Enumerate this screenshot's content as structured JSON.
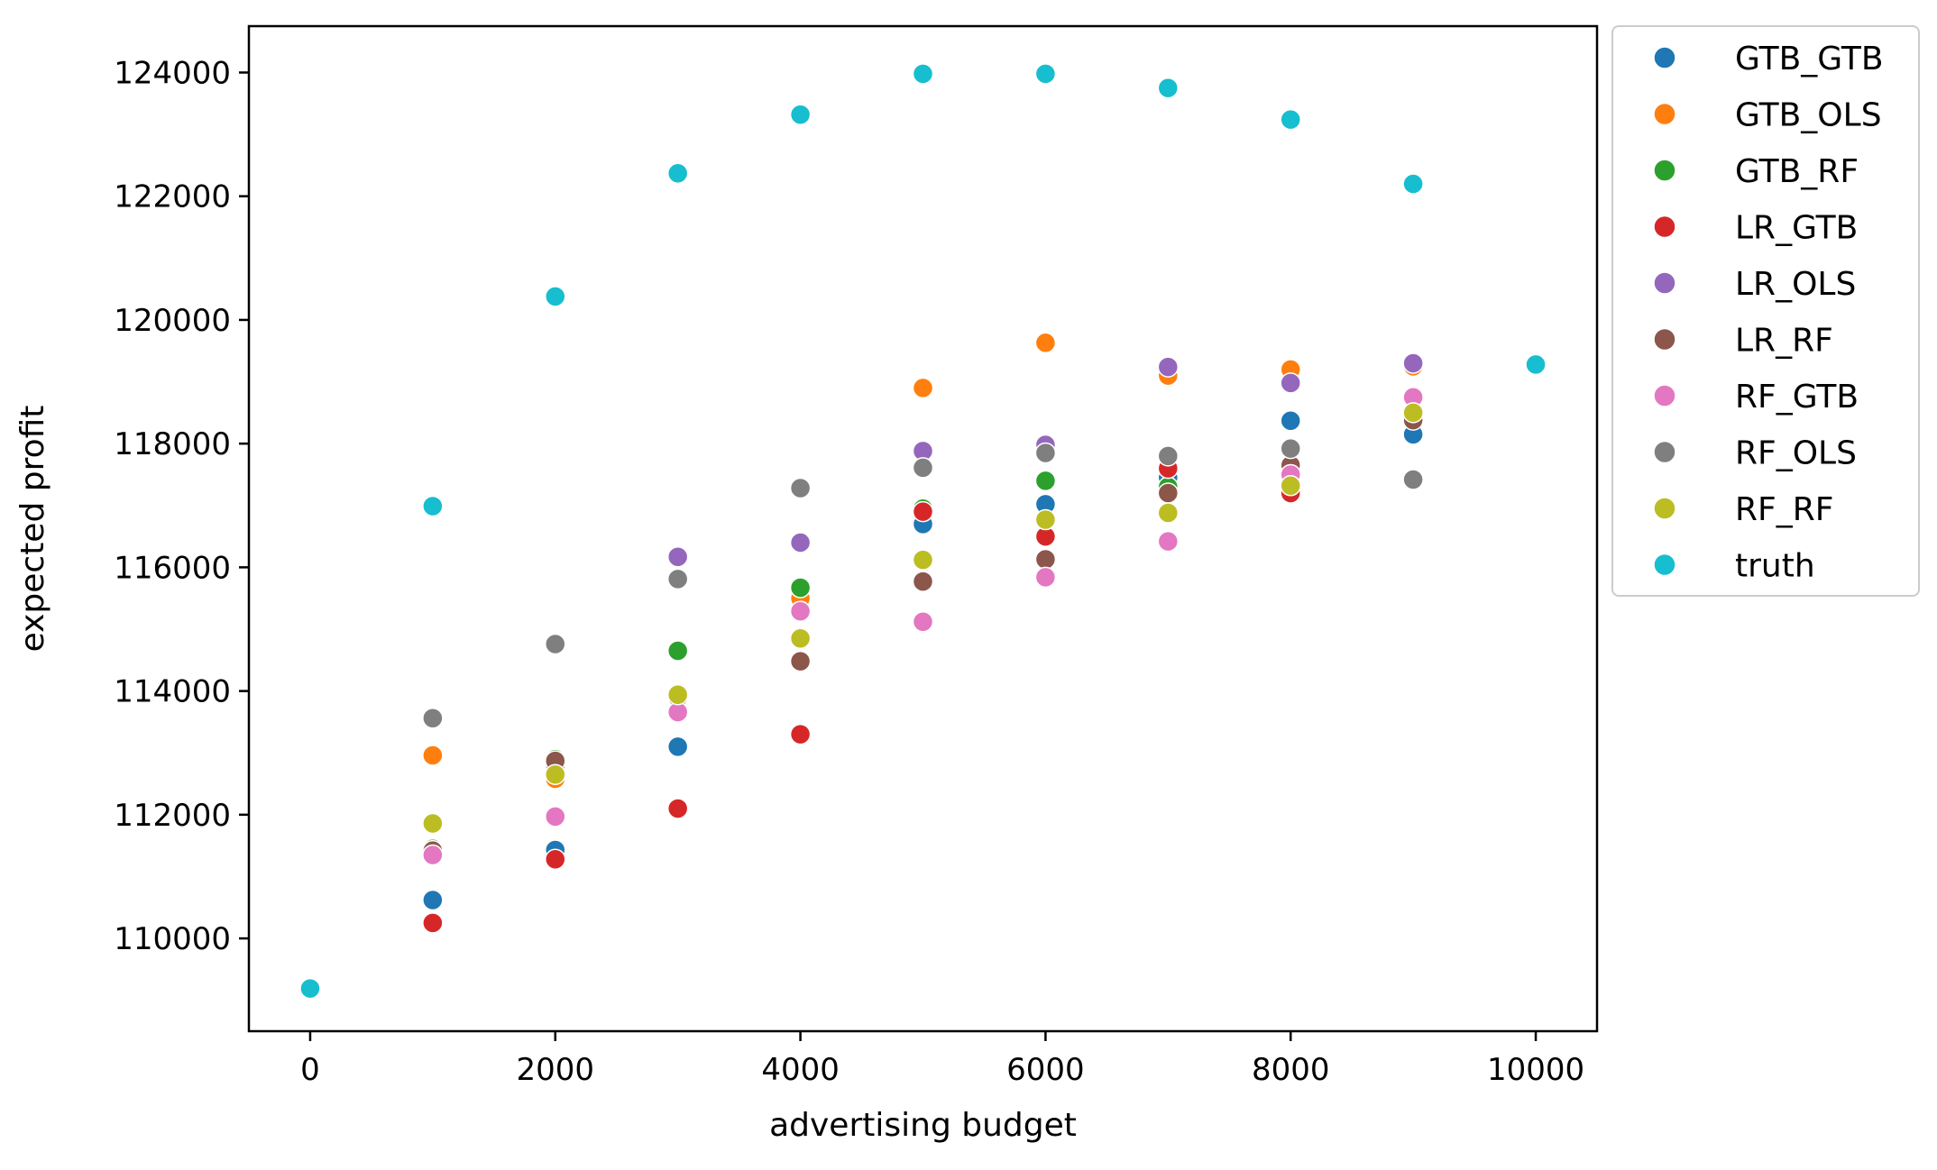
{
  "chart_data": {
    "type": "scatter",
    "title": "",
    "xlabel": "advertising budget",
    "ylabel": "expected profit",
    "xlim": [
      -500,
      10500
    ],
    "ylim": [
      108500,
      124750
    ],
    "xticks": [
      0,
      2000,
      4000,
      6000,
      8000,
      10000
    ],
    "yticks": [
      110000,
      112000,
      114000,
      116000,
      118000,
      120000,
      122000,
      124000
    ],
    "grid": false,
    "legend_position": "outside-right-top",
    "series": [
      {
        "name": "GTB_GTB",
        "color": "#1f77b4",
        "x": [
          1000,
          2000,
          3000,
          4000,
          5000,
          6000,
          7000,
          8000,
          9000
        ],
        "y": [
          110620,
          111430,
          113100,
          115560,
          116700,
          117020,
          117450,
          118370,
          118150
        ]
      },
      {
        "name": "GTB_OLS",
        "color": "#ff7f0e",
        "x": [
          1000,
          2000,
          3000,
          4000,
          5000,
          6000,
          7000,
          8000,
          9000
        ],
        "y": [
          112960,
          112580,
          113880,
          115500,
          118900,
          119630,
          119100,
          119200,
          119250
        ]
      },
      {
        "name": "GTB_RF",
        "color": "#2ca02c",
        "x": [
          1000,
          2000,
          3000,
          4000,
          5000,
          6000,
          7000,
          8000,
          9000
        ],
        "y": [
          111450,
          112900,
          114650,
          115670,
          116950,
          117400,
          117300,
          117550,
          118400
        ]
      },
      {
        "name": "LR_GTB",
        "color": "#d62728",
        "x": [
          1000,
          2000,
          3000,
          4000,
          5000,
          6000,
          7000,
          8000,
          9000
        ],
        "y": [
          110250,
          111280,
          112100,
          113300,
          116900,
          116500,
          117600,
          117200,
          118450
        ]
      },
      {
        "name": "LR_OLS",
        "color": "#9467bd",
        "x": [
          1000,
          2000,
          3000,
          4000,
          5000,
          6000,
          7000,
          8000,
          9000
        ],
        "y": [
          111400,
          112800,
          116170,
          116400,
          117880,
          117980,
          119240,
          118980,
          119300
        ]
      },
      {
        "name": "LR_RF",
        "color": "#8c564b",
        "x": [
          1000,
          2000,
          3000,
          4000,
          5000,
          6000,
          7000,
          8000,
          9000
        ],
        "y": [
          111420,
          112870,
          113900,
          114480,
          115770,
          116130,
          117200,
          117650,
          118380
        ]
      },
      {
        "name": "RF_GTB",
        "color": "#e377c2",
        "x": [
          1000,
          2000,
          3000,
          4000,
          5000,
          6000,
          7000,
          8000,
          9000
        ],
        "y": [
          111350,
          111970,
          113660,
          115290,
          115120,
          115840,
          116420,
          117500,
          118750
        ]
      },
      {
        "name": "RF_OLS",
        "color": "#7f7f7f",
        "x": [
          1000,
          2000,
          3000,
          4000,
          5000,
          6000,
          7000,
          8000,
          9000
        ],
        "y": [
          113560,
          114760,
          115810,
          117280,
          117610,
          117850,
          117800,
          117920,
          117420
        ]
      },
      {
        "name": "RF_RF",
        "color": "#bcbd22",
        "x": [
          1000,
          2000,
          3000,
          4000,
          5000,
          6000,
          7000,
          8000,
          9000
        ],
        "y": [
          111860,
          112650,
          113940,
          114850,
          116120,
          116770,
          116880,
          117320,
          118500
        ]
      },
      {
        "name": "truth",
        "color": "#17becf",
        "x": [
          0,
          1000,
          2000,
          3000,
          4000,
          5000,
          6000,
          7000,
          8000,
          9000,
          10000
        ],
        "y": [
          109190,
          116990,
          120380,
          122370,
          123320,
          123980,
          123980,
          123750,
          123240,
          122200,
          119280
        ]
      }
    ]
  }
}
